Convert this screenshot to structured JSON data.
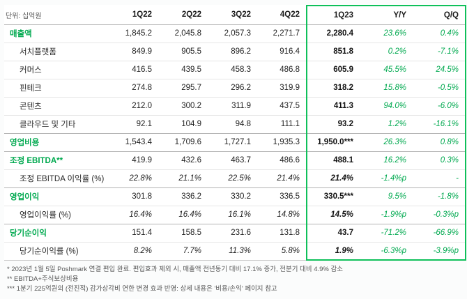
{
  "colors": {
    "green_text": "#00a94f",
    "green_border": "#0fc05a"
  },
  "chart_data": {
    "type": "table",
    "unit_label": "단위: 십억원",
    "columns": [
      "단위: 십억원",
      "1Q22",
      "2Q22",
      "3Q22",
      "4Q22",
      "1Q23",
      "Y/Y",
      "Q/Q"
    ],
    "highlighted_columns": [
      "1Q23",
      "Y/Y",
      "Q/Q"
    ],
    "rows": [
      {
        "label": "매출액",
        "type": "major",
        "values": [
          "1,845.2",
          "2,045.8",
          "2,057.3",
          "2,271.7",
          "2,280.4",
          "23.6%",
          "0.4%"
        ]
      },
      {
        "label": "서치플랫폼",
        "type": "sub",
        "values": [
          "849.9",
          "905.5",
          "896.2",
          "916.4",
          "851.8",
          "0.2%",
          "-7.1%"
        ]
      },
      {
        "label": "커머스",
        "type": "sub",
        "values": [
          "416.5",
          "439.5",
          "458.3",
          "486.8",
          "605.9",
          "45.5%",
          "24.5%"
        ]
      },
      {
        "label": "핀테크",
        "type": "sub",
        "values": [
          "274.8",
          "295.7",
          "296.2",
          "319.9",
          "318.2",
          "15.8%",
          "-0.5%"
        ]
      },
      {
        "label": "콘텐츠",
        "type": "sub",
        "values": [
          "212.0",
          "300.2",
          "311.9",
          "437.5",
          "411.3",
          "94.0%",
          "-6.0%"
        ]
      },
      {
        "label": "클라우드 및 기타",
        "type": "sub",
        "values": [
          "92.1",
          "104.9",
          "94.8",
          "111.1",
          "93.2",
          "1.2%",
          "-16.1%"
        ]
      },
      {
        "label": "영업비용",
        "type": "major",
        "values": [
          "1,543.4",
          "1,709.6",
          "1,727.1",
          "1,935.3",
          "1,950.0***",
          "26.3%",
          "0.8%"
        ]
      },
      {
        "label": "조정 EBITDA**",
        "type": "major",
        "values": [
          "419.9",
          "432.6",
          "463.7",
          "486.6",
          "488.1",
          "16.2%",
          "0.3%"
        ]
      },
      {
        "label": "조정 EBITDA 이익률 (%)",
        "type": "pct",
        "values": [
          "22.8%",
          "21.1%",
          "22.5%",
          "21.4%",
          "21.4%",
          "-1.4%p",
          "-"
        ]
      },
      {
        "label": "영업이익",
        "type": "major",
        "values": [
          "301.8",
          "336.2",
          "330.2",
          "336.5",
          "330.5***",
          "9.5%",
          "-1.8%"
        ]
      },
      {
        "label": "영업이익률 (%)",
        "type": "pct",
        "values": [
          "16.4%",
          "16.4%",
          "16.1%",
          "14.8%",
          "14.5%",
          "-1.9%p",
          "-0.3%p"
        ]
      },
      {
        "label": "당기순이익",
        "type": "major",
        "values": [
          "151.4",
          "158.5",
          "231.6",
          "131.8",
          "43.7",
          "-71.2%",
          "-66.9%"
        ]
      },
      {
        "label": "당기순이익률 (%)",
        "type": "pct",
        "values": [
          "8.2%",
          "7.7%",
          "11.3%",
          "5.8%",
          "1.9%",
          "-6.3%p",
          "-3.9%p"
        ]
      }
    ],
    "footnotes": [
      "* 2023년 1월 5일 Poshmark 연결 편입 완료. 편입효과 제외 시, 매출액 전년동기 대비 17.1% 증가, 전분기 대비 4.9% 감소",
      "** EBITDA+주식보상비용",
      "*** 1분기 225억원의 (전진적) 감가상각비 연한 변경 효과 반영: 상세 내용은 '비용/손익' 페이지 참고"
    ]
  }
}
